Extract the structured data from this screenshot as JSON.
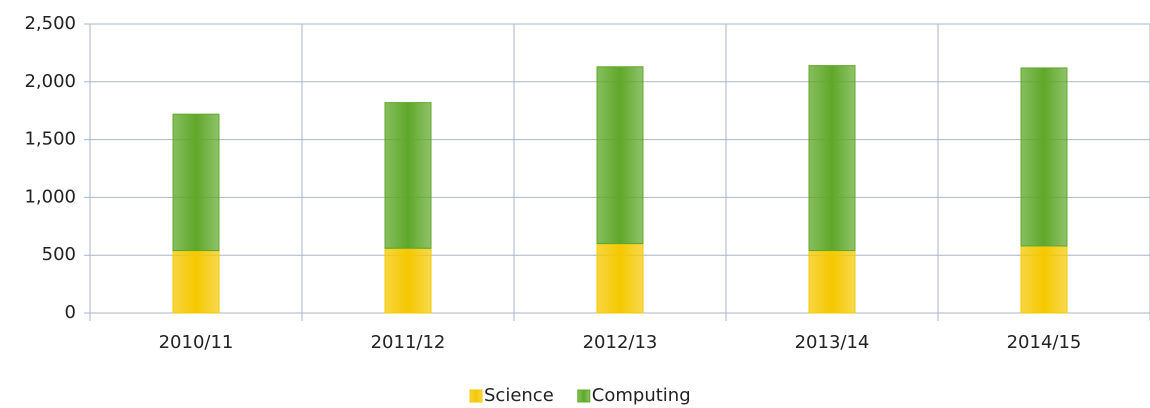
{
  "chart_data": {
    "type": "stacked_bar",
    "categories": [
      "2010/11",
      "2011/12",
      "2012/13",
      "2013/14",
      "2014/15"
    ],
    "series": [
      {
        "name": "Science",
        "color": "#f5c800",
        "values": [
          540,
          560,
          600,
          540,
          580
        ]
      },
      {
        "name": "Computing",
        "color": "#5fa82a",
        "values": [
          1180,
          1260,
          1530,
          1600,
          1540
        ]
      }
    ],
    "ylim": [
      0,
      2500
    ],
    "yticks": [
      0,
      500,
      {
        "value": 1000,
        "label": "1,000"
      },
      {
        "value": 1500,
        "label": "1,500"
      },
      {
        "value": 2000,
        "label": "2,000"
      },
      {
        "value": 2500,
        "label": "2,500"
      }
    ],
    "grid": true,
    "legend": "bottom"
  }
}
